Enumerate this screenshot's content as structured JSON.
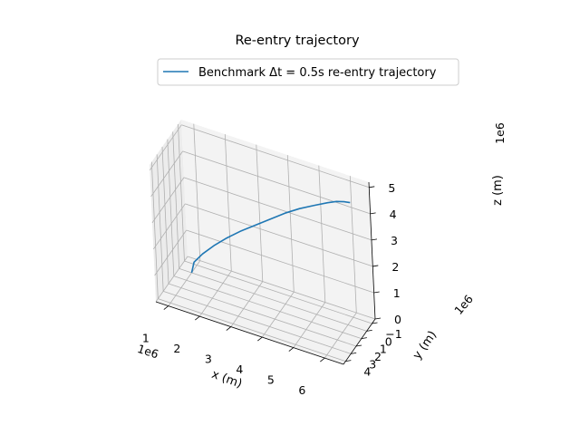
{
  "chart_data": {
    "type": "line",
    "projection": "3d",
    "title": "Re-entry trajectory",
    "xlabel": "x (m)",
    "ylabel": "y (m)",
    "zlabel": "z (m)",
    "x_offset_label": "1e6",
    "y_offset_label": "1e6",
    "z_offset_label": "1e6",
    "x_ticks": [
      "1",
      "2",
      "3",
      "4",
      "5",
      "6"
    ],
    "y_ticks": [
      "−1",
      "0",
      "1",
      "2",
      "3",
      "4"
    ],
    "z_ticks": [
      "0",
      "1",
      "2",
      "3",
      "4",
      "5"
    ],
    "xlim": [
      0.6,
      6.6
    ],
    "ylim": [
      -1.6,
      4.4
    ],
    "zlim": [
      0,
      5.2
    ],
    "grid": true,
    "legend_placement": "top-center",
    "series": [
      {
        "name": "Benchmark Δt = 0.5s re-entry trajectory",
        "color": "#1f77b4",
        "x": [
          1.0,
          1.1,
          1.4,
          1.8,
          2.25,
          2.75,
          3.25,
          3.75,
          4.25,
          4.75,
          5.25,
          5.7,
          6.0,
          6.25,
          6.45
        ],
        "y": [
          0.0,
          0.03,
          0.1,
          0.2,
          0.3,
          0.4,
          0.5,
          0.6,
          0.7,
          0.8,
          0.9,
          0.97,
          1.02,
          1.06,
          1.08
        ],
        "z": [
          0.0,
          0.45,
          0.9,
          1.4,
          1.9,
          2.4,
          2.85,
          3.3,
          3.75,
          4.15,
          4.5,
          4.8,
          4.98,
          5.08,
          5.13
        ]
      }
    ]
  }
}
